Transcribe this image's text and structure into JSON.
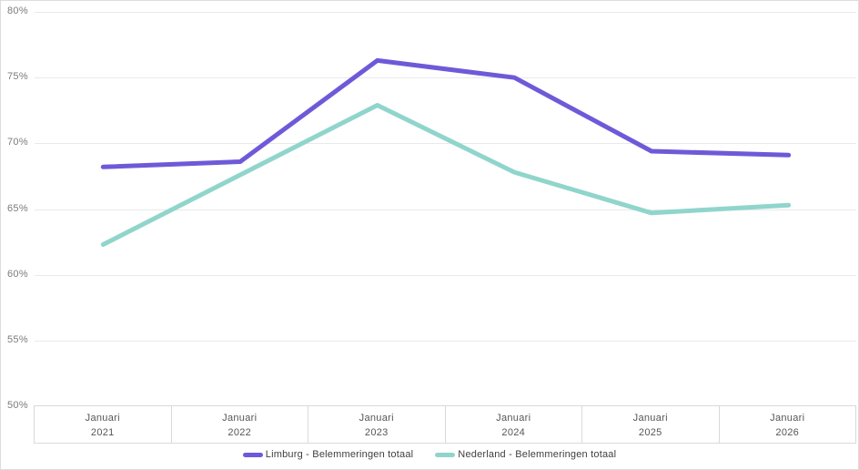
{
  "chart_data": {
    "type": "line",
    "categories": [
      "Januari 2021",
      "Januari 2022",
      "Januari 2023",
      "Januari 2024",
      "Januari 2025",
      "Januari 2026"
    ],
    "x_ticks": [
      {
        "line1": "Januari",
        "line2": "2021"
      },
      {
        "line1": "Januari",
        "line2": "2022"
      },
      {
        "line1": "Januari",
        "line2": "2023"
      },
      {
        "line1": "Januari",
        "line2": "2024"
      },
      {
        "line1": "Januari",
        "line2": "2025"
      },
      {
        "line1": "Januari",
        "line2": "2026"
      }
    ],
    "series": [
      {
        "name": "Limburg - Belemmeringen totaal",
        "color": "#6e5ad8",
        "values": [
          68.2,
          68.6,
          76.3,
          75.0,
          69.4,
          69.1
        ]
      },
      {
        "name": "Nederland - Belemmeringen totaal",
        "color": "#90d5cc",
        "values": [
          62.3,
          67.6,
          72.9,
          67.8,
          64.7,
          65.3
        ]
      }
    ],
    "y_ticks": [
      {
        "value": 80,
        "label": "80%"
      },
      {
        "value": 75,
        "label": "75%"
      },
      {
        "value": 70,
        "label": "70%"
      },
      {
        "value": 65,
        "label": "65%"
      },
      {
        "value": 60,
        "label": "60%"
      },
      {
        "value": 55,
        "label": "55%"
      },
      {
        "value": 50,
        "label": "50%"
      }
    ],
    "ylim": [
      50,
      80
    ],
    "unit": "%",
    "grid": true,
    "legend_position": "bottom",
    "title": "",
    "xlabel": "",
    "ylabel": ""
  },
  "colors": {
    "background": "#ffffff",
    "container_border": "#dcdcdc",
    "gridline": "#e9e9e9",
    "axis_border": "#d9d9d9",
    "y_tick_text": "#7b7b7b",
    "x_tick_text": "#565656",
    "legend_text": "#404040"
  }
}
